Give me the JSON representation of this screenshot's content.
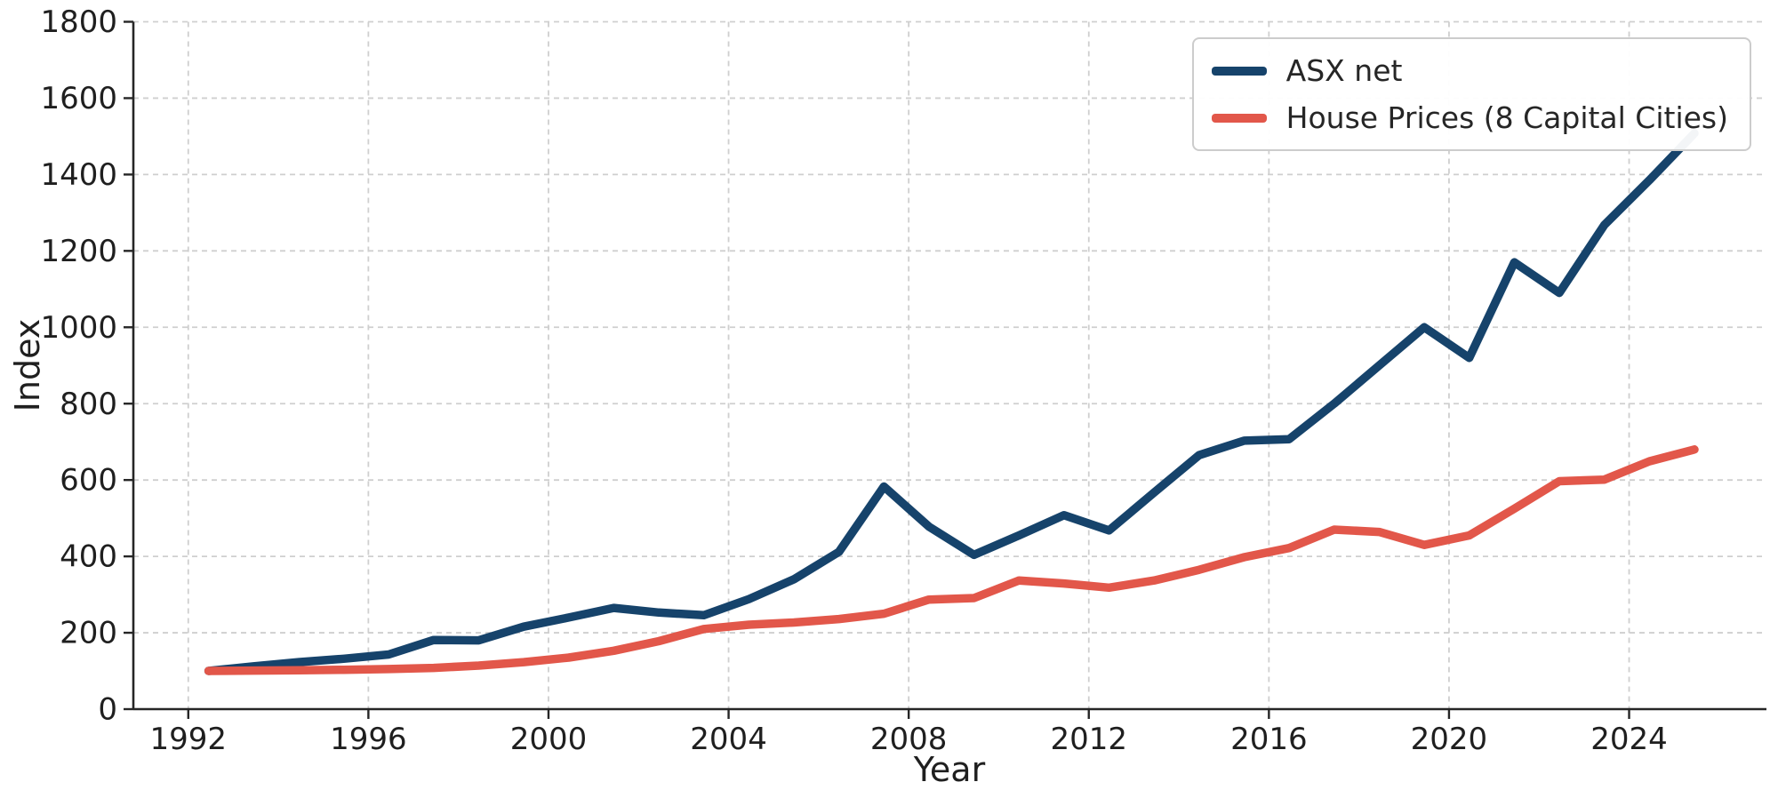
{
  "chart_data": {
    "type": "line",
    "title": "",
    "xlabel": "Year",
    "ylabel": "Index",
    "legend_position": "upper right",
    "grid": "dashed-both-axes",
    "background_color": "#ffffff",
    "gridline_color": "#cfcfcf",
    "text_color": "#1f1f1f",
    "xlim": [
      1990.78,
      2027.05
    ],
    "ylim": [
      0,
      1800
    ],
    "x_ticks": [
      1992,
      1996,
      2000,
      2004,
      2008,
      2012,
      2016,
      2020,
      2024
    ],
    "y_ticks": [
      0,
      200,
      400,
      600,
      800,
      1000,
      1200,
      1400,
      1600,
      1800
    ],
    "x": [
      1992,
      1993,
      1994,
      1995,
      1996,
      1997,
      1998,
      1999,
      2000,
      2001,
      2002,
      2003,
      2004,
      2005,
      2006,
      2007,
      2008,
      2009,
      2010,
      2011,
      2012,
      2013,
      2014,
      2015,
      2016,
      2017,
      2018,
      2019,
      2020,
      2021,
      2022,
      2023,
      2024,
      2025
    ],
    "x_point_offset": 0.45,
    "series": [
      {
        "name": "ASX net",
        "color": "#16436B",
        "line_width": 9.5,
        "values": [
          100,
          112,
          123,
          132,
          143,
          181,
          180,
          216,
          240,
          265,
          253,
          246,
          288,
          340,
          412,
          583,
          478,
          404,
          455,
          508,
          468,
          567,
          665,
          703,
          707,
          800,
          900,
          1000,
          920,
          1170,
          1090,
          1268,
          1385,
          1508
        ]
      },
      {
        "name": "House Prices (8 Capital Cities)",
        "color": "#E2574A",
        "line_width": 9.5,
        "values": [
          100,
          101,
          102,
          103,
          105,
          108,
          114,
          123,
          135,
          153,
          178,
          210,
          221,
          227,
          236,
          250,
          287,
          291,
          337,
          329,
          318,
          337,
          365,
          398,
          422,
          470,
          464,
          430,
          455,
          525,
          597,
          601,
          649,
          680
        ]
      }
    ]
  }
}
